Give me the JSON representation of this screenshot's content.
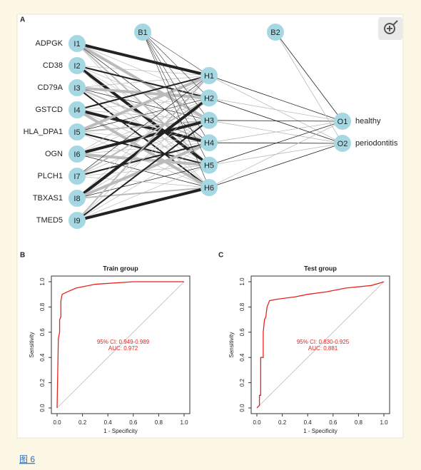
{
  "panel_labels": [
    "A",
    "B",
    "C"
  ],
  "diagram": {
    "inputs": [
      {
        "gene": "ADPGK",
        "label": "I1"
      },
      {
        "gene": "CD38",
        "label": "I2"
      },
      {
        "gene": "CD79A",
        "label": "I3"
      },
      {
        "gene": "GSTCD",
        "label": "I4"
      },
      {
        "gene": "HLA_DPA1",
        "label": "I5"
      },
      {
        "gene": "OGN",
        "label": "I6"
      },
      {
        "gene": "PLCH1",
        "label": "I7"
      },
      {
        "gene": "TBXAS1",
        "label": "I8"
      },
      {
        "gene": "TMED5",
        "label": "I9"
      }
    ],
    "hidden": [
      "H1",
      "H2",
      "H3",
      "H4",
      "H5",
      "H6"
    ],
    "bias": [
      "B1",
      "B2"
    ],
    "outputs": [
      {
        "label": "O1",
        "class": "healthy"
      },
      {
        "label": "O2",
        "class": "periodontitis"
      }
    ]
  },
  "chart_data": [
    {
      "type": "line",
      "title": "Train group",
      "xlabel": "1 - Specificity",
      "ylabel": "Sensitivity",
      "color": "#e8231c",
      "x": [
        0,
        0.01,
        0.02,
        0.02,
        0.03,
        0.03,
        0.04,
        0.08,
        0.15,
        0.3,
        0.6,
        1
      ],
      "y": [
        0,
        0.55,
        0.6,
        0.7,
        0.72,
        0.85,
        0.9,
        0.92,
        0.95,
        0.98,
        1,
        1
      ],
      "annotations": [
        "AUC: 0.972",
        "95% CI: 0.949-0.989"
      ],
      "xlim": [
        0,
        1
      ],
      "ylim": [
        0,
        1
      ],
      "xticks": [
        {
          "value": 0,
          "label": "0.0"
        },
        0.2,
        0.4,
        0.6,
        0.8,
        {
          "value": 1,
          "label": "1.0"
        }
      ],
      "yticks": [
        {
          "value": 0,
          "label": "0.0"
        },
        0.2,
        0.4,
        0.6,
        0.8,
        {
          "value": 1,
          "label": "1.0"
        }
      ]
    },
    {
      "type": "line",
      "title": "Test group",
      "xlabel": "1 - Specificity",
      "ylabel": "Sensitivity",
      "color": "#e8231c",
      "x": [
        0,
        0.02,
        0.02,
        0.03,
        0.03,
        0.05,
        0.05,
        0.06,
        0.07,
        0.08,
        0.1,
        0.15,
        0.3,
        0.4,
        0.55,
        0.7,
        0.9,
        0.97,
        1
      ],
      "y": [
        0,
        0.02,
        0.1,
        0.1,
        0.4,
        0.4,
        0.6,
        0.7,
        0.72,
        0.8,
        0.85,
        0.86,
        0.88,
        0.9,
        0.92,
        0.95,
        0.97,
        0.99,
        1
      ],
      "annotations": [
        "AUC: 0.881",
        "95% CI: 0.830-0.925"
      ],
      "xlim": [
        0,
        1
      ],
      "ylim": [
        0,
        1
      ],
      "xticks": [
        {
          "value": 0,
          "label": "0.0"
        },
        0.2,
        0.4,
        0.6,
        0.8,
        {
          "value": 1,
          "label": "1.0"
        }
      ],
      "yticks": [
        {
          "value": 0,
          "label": "0.0"
        },
        0.2,
        0.4,
        0.6,
        0.8,
        {
          "value": 1,
          "label": "1.0"
        }
      ]
    }
  ],
  "caption": "图 6"
}
